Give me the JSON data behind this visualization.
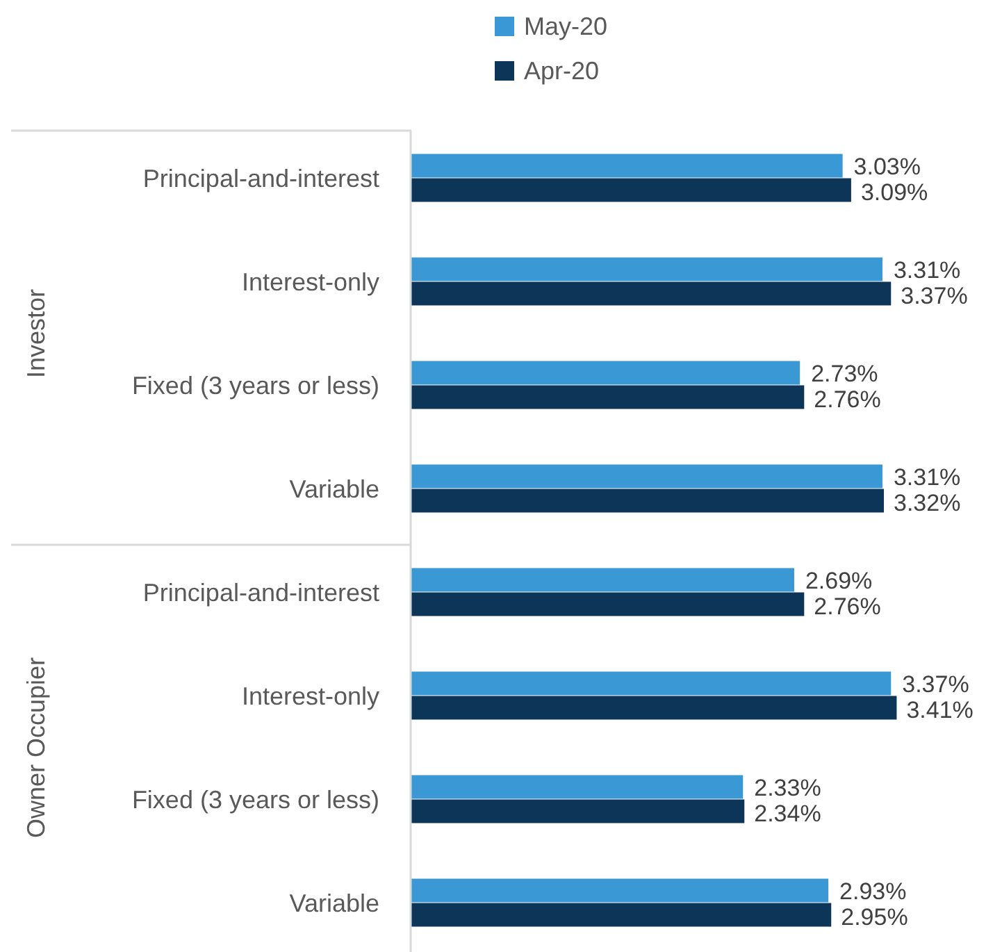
{
  "chart_data": {
    "type": "bar",
    "orientation": "horizontal",
    "categories": [
      "Principal-and-interest",
      "Interest-only",
      "Fixed (3 years or less)",
      "Variable",
      "Principal-and-interest",
      "Interest-only",
      "Fixed (3 years or less)",
      "Variable"
    ],
    "series": [
      {
        "name": "May-20",
        "color": "#3a98d4",
        "values": [
          3.03,
          3.31,
          2.73,
          3.31,
          2.69,
          3.37,
          2.33,
          2.93
        ],
        "value_labels": [
          "3.03%",
          "3.31%",
          "2.73%",
          "3.31%",
          "2.69%",
          "3.37%",
          "2.33%",
          "2.93%"
        ]
      },
      {
        "name": "Apr-20",
        "color": "#0c3558",
        "values": [
          3.09,
          3.37,
          2.76,
          3.32,
          2.76,
          3.41,
          2.34,
          2.95
        ],
        "value_labels": [
          "3.09%",
          "3.37%",
          "2.76%",
          "3.32%",
          "2.76%",
          "3.41%",
          "2.34%",
          "2.95%"
        ]
      }
    ],
    "tick_labels": "y",
    "legend": "top",
    "annotations": [
      "Investor",
      "Owner Occupier"
    ]
  }
}
